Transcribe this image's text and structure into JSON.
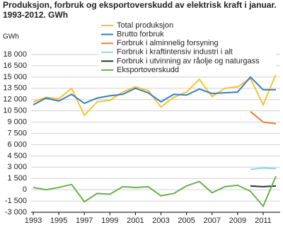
{
  "chart_data": {
    "type": "line",
    "title": "Produksjon, forbruk og eksportoverskudd av elektrisk kraft i januar.",
    "subtitle": "1993-2012. GWh",
    "y_label": "GWh",
    "x": [
      1993,
      1994,
      1995,
      1996,
      1997,
      1998,
      1999,
      2000,
      2001,
      2002,
      2003,
      2004,
      2005,
      2006,
      2007,
      2008,
      2009,
      2010,
      2011,
      2012
    ],
    "xlim": [
      1993,
      2012
    ],
    "xticks": [
      1993,
      1995,
      1997,
      1999,
      2001,
      2003,
      2005,
      2007,
      2009,
      2011
    ],
    "ylim": [
      -3000,
      18000
    ],
    "yticks": [
      {
        "value": -3000,
        "label": "-3 000"
      },
      {
        "value": -1500,
        "label": "-1 500"
      },
      0,
      {
        "value": 1500,
        "label": "1 500"
      },
      {
        "value": 3000,
        "label": "3 000"
      },
      {
        "value": 4500,
        "label": "4 500"
      },
      {
        "value": 6000,
        "label": "6 000"
      },
      {
        "value": 7500,
        "label": "7 500"
      },
      {
        "value": 9000,
        "label": "9 000"
      },
      {
        "value": 10500,
        "label": "10 500"
      },
      {
        "value": 12000,
        "label": "12 000"
      },
      {
        "value": 13500,
        "label": "13 500"
      },
      {
        "value": 15000,
        "label": "15 000"
      },
      {
        "value": 16500,
        "label": "16 500"
      },
      {
        "value": 18000,
        "label": "18 000"
      }
    ],
    "grid": true,
    "series": [
      {
        "name": "Total produksjon",
        "color": "#f4c531",
        "values": [
          11700,
          12300,
          12100,
          13500,
          9900,
          11700,
          11900,
          13000,
          13700,
          13200,
          11000,
          12300,
          13000,
          14700,
          12400,
          13500,
          13700,
          14800,
          11300,
          15400
        ]
      },
      {
        "name": "Brutto forbruk",
        "color": "#3a7ebf",
        "values": [
          11300,
          12200,
          11800,
          12700,
          11500,
          12200,
          12500,
          12700,
          13500,
          12900,
          11700,
          12700,
          12600,
          13400,
          12800,
          12900,
          13000,
          15000,
          13300,
          13300
        ]
      },
      {
        "name": "Forbruk i alminnelig forsyning",
        "color": "#f07c3a",
        "values": [
          null,
          null,
          null,
          null,
          null,
          null,
          null,
          null,
          null,
          null,
          null,
          null,
          null,
          null,
          null,
          null,
          null,
          10400,
          9000,
          8800
        ]
      },
      {
        "name": "Forbruk i kraftintensiv industri i alt",
        "color": "#8fd3e8",
        "values": [
          null,
          null,
          null,
          null,
          null,
          null,
          null,
          null,
          null,
          null,
          null,
          null,
          null,
          null,
          null,
          null,
          null,
          2700,
          2900,
          2800
        ]
      },
      {
        "name": "Forbruk i utvinning av råolje og naturgass",
        "color": "#1d3b33",
        "values": [
          null,
          null,
          null,
          null,
          null,
          null,
          null,
          null,
          null,
          null,
          null,
          null,
          null,
          null,
          null,
          null,
          null,
          500,
          400,
          500
        ]
      },
      {
        "name": "Eksportoverskudd",
        "color": "#6ab04c",
        "values": [
          300,
          0,
          300,
          700,
          -1600,
          -500,
          -600,
          400,
          300,
          400,
          -800,
          -500,
          500,
          1100,
          -400,
          400,
          600,
          -200,
          -2200,
          1800
        ]
      }
    ]
  }
}
